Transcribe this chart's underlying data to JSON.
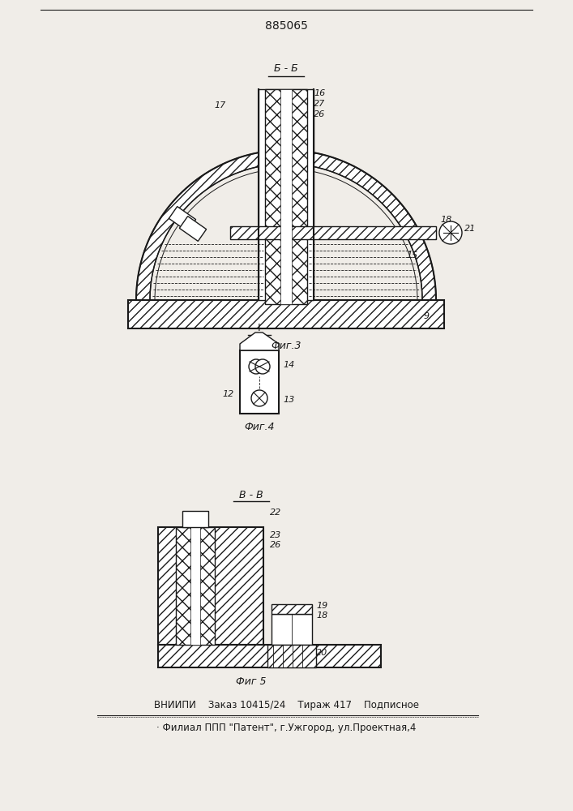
{
  "title": "885065",
  "bg_color": "#f0ede8",
  "line_color": "#1a1a1a",
  "footer_line1": "ВНИИПИ    Заказ 10415/24    Тираж 417    Подписное",
  "footer_line2": "· Филиал ППП \"Патент\", г.Ужгород, ул.Проектная,4"
}
